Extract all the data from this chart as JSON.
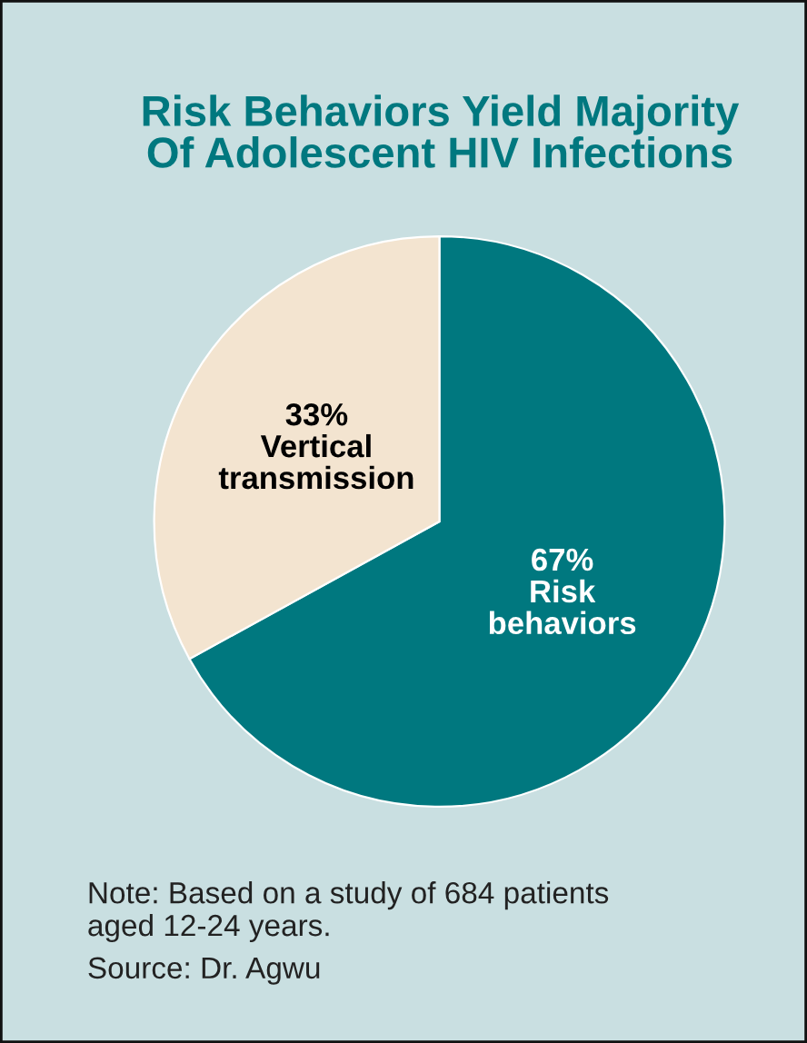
{
  "chart_data": {
    "type": "pie",
    "title": "Risk Behaviors Yield Majority\nOf Adolescent HIV Infections",
    "categories": [
      "Risk\nbehaviors",
      "Vertical\ntransmission"
    ],
    "values": [
      67,
      33
    ],
    "value_labels": [
      "67%",
      "33%"
    ],
    "colors": [
      "#00787f",
      "#f3e4d0"
    ],
    "annotations": [
      "Note: Based on a study of 684 patients\naged 12-24 years.",
      "Source: Dr. Agwu"
    ]
  }
}
